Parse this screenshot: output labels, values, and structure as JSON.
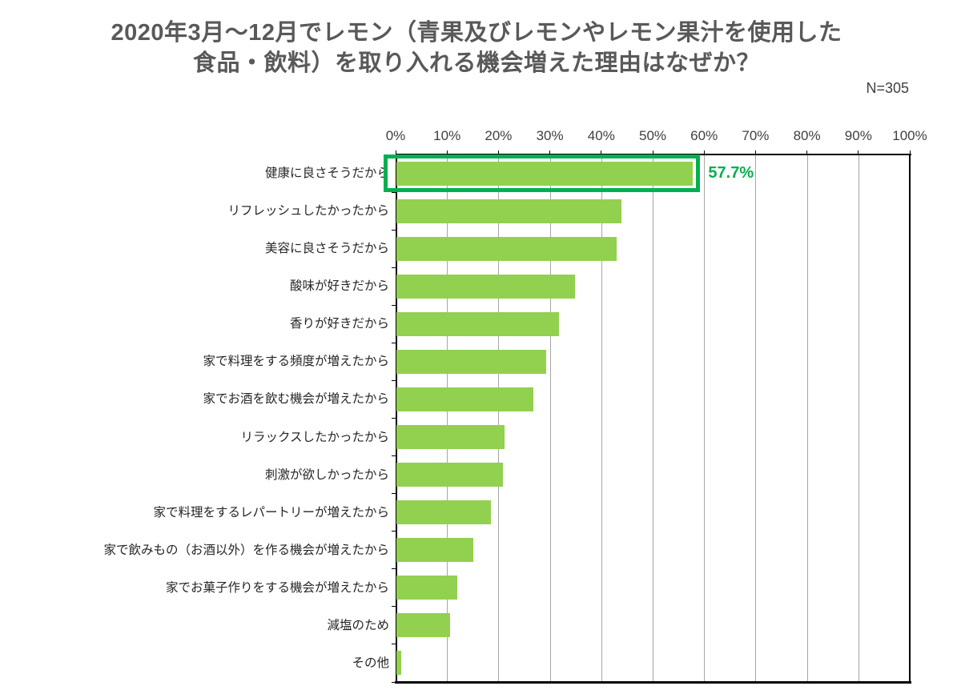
{
  "title": {
    "lines": [
      "2020年3月～12月でレモン（青果及びレモンやレモン果汁を使用した",
      "食品・飲料）を取り入れる機会増えた理由はなぜか？"
    ]
  },
  "sample_size_label": "N=305",
  "colors": {
    "title_text": "#595959",
    "bar_fill": "#92d050",
    "highlight_border": "#00b050",
    "value_label": "#00b050",
    "gridline": "#a6a6a6",
    "axis": "#000000",
    "tick_label": "#404040",
    "category_label": "#262626",
    "background": "#ffffff"
  },
  "chart_data": {
    "type": "bar",
    "orientation": "horizontal",
    "title": "2020年3月～12月でレモン（青果及びレモンやレモン果汁を使用した食品・飲料）を取り入れる機会増えた理由はなぜか？",
    "sample_size": "N=305",
    "categories": [
      "健康に良さそうだから",
      "リフレッシュしたかったから",
      "美容に良さそうだから",
      "酸味が好きだから",
      "香りが好きだから",
      "家で料理をする頻度が増えたから",
      "家でお酒を飲む機会が増えたから",
      "リラックスしたかったから",
      "刺激が欲しかったから",
      "家で料理をするレパートリーが増えたから",
      "家で飲みもの（お酒以外）を作る機会が増えたから",
      "家でお菓子作りをする機会が増えたから",
      "減塩のため",
      "その他"
    ],
    "values": [
      57.7,
      43.7,
      42.9,
      34.8,
      31.6,
      29.2,
      26.6,
      21.0,
      20.7,
      18.4,
      15.0,
      11.8,
      10.5,
      1.0
    ],
    "xlabel": "",
    "ylabel": "",
    "xlim": [
      0,
      100
    ],
    "x_ticks": [
      "0%",
      "10%",
      "20%",
      "30%",
      "40%",
      "50%",
      "60%",
      "70%",
      "80%",
      "90%",
      "100%"
    ],
    "grid": true,
    "axis_position": "top",
    "highlight": {
      "category_index": 0,
      "category": "健康に良さそうだから",
      "value_label": "57.7%"
    }
  }
}
